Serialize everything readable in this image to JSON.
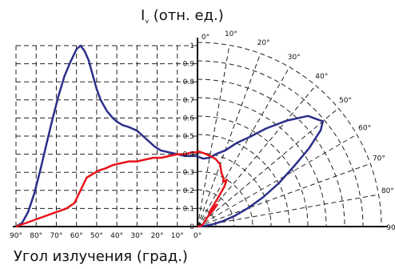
{
  "chart_data": {
    "type": "line",
    "title": {
      "main": "I",
      "sub": "v",
      "rest": " (отн. ед.)"
    },
    "xlabel": "Угол излучения (град.)",
    "left_panel": {
      "axis": "cartesian",
      "x_range": [
        90,
        0
      ],
      "y_range": [
        0,
        1.0
      ],
      "x_ticks": [
        "90°",
        "80°",
        "70°",
        "60°",
        "50°",
        "40°",
        "30°",
        "20°",
        "10°",
        "0°"
      ],
      "y_ticks": [
        "0",
        "0.1",
        "0.2",
        "0.3",
        "0.4",
        "0.5",
        "0.6",
        "0.7",
        "0.8",
        "0.9",
        "1"
      ],
      "grid": true
    },
    "right_panel": {
      "axis": "polar",
      "angle_range": [
        0,
        90
      ],
      "angle_ticks": [
        "0°",
        "10°",
        "20°",
        "30°",
        "40°",
        "50°",
        "60°",
        "70°",
        "80°",
        "90"
      ],
      "r_range": [
        0,
        1.0
      ]
    },
    "series": [
      {
        "color": "#2b2f8a",
        "cartesian": [
          [
            90,
            0.0
          ],
          [
            87,
            0.02
          ],
          [
            84,
            0.08
          ],
          [
            81,
            0.18
          ],
          [
            78,
            0.31
          ],
          [
            75,
            0.45
          ],
          [
            72,
            0.59
          ],
          [
            69,
            0.72
          ],
          [
            66,
            0.83
          ],
          [
            63,
            0.91
          ],
          [
            60,
            0.98
          ],
          [
            58,
            1.0
          ],
          [
            56,
            0.97
          ],
          [
            54,
            0.92
          ],
          [
            52,
            0.84
          ],
          [
            50,
            0.76
          ],
          [
            48,
            0.7
          ],
          [
            45,
            0.64
          ],
          [
            42,
            0.6
          ],
          [
            40,
            0.58
          ],
          [
            37,
            0.56
          ],
          [
            34,
            0.55
          ],
          [
            32,
            0.54
          ],
          [
            30,
            0.53
          ],
          [
            27,
            0.5
          ],
          [
            24,
            0.47
          ],
          [
            21,
            0.44
          ],
          [
            18,
            0.42
          ],
          [
            14,
            0.41
          ],
          [
            10,
            0.4
          ],
          [
            6,
            0.39
          ],
          [
            3,
            0.39
          ],
          [
            0,
            0.39
          ]
        ],
        "polar": [
          [
            0,
            0.38
          ],
          [
            5,
            0.37
          ],
          [
            10,
            0.38
          ],
          [
            15,
            0.41
          ],
          [
            20,
            0.44
          ],
          [
            25,
            0.5
          ],
          [
            30,
            0.56
          ],
          [
            35,
            0.65
          ],
          [
            40,
            0.75
          ],
          [
            45,
            0.85
          ],
          [
            49,
            0.88
          ],
          [
            50,
            0.89
          ],
          [
            52,
            0.85
          ],
          [
            55,
            0.74
          ],
          [
            58,
            0.62
          ],
          [
            62,
            0.5
          ],
          [
            66,
            0.39
          ],
          [
            70,
            0.29
          ],
          [
            74,
            0.21
          ],
          [
            78,
            0.14
          ],
          [
            82,
            0.08
          ],
          [
            86,
            0.03
          ],
          [
            90,
            0.0
          ]
        ]
      },
      {
        "color": "#e8141c",
        "cartesian": [
          [
            90,
            0.0
          ],
          [
            85,
            0.02
          ],
          [
            80,
            0.04
          ],
          [
            75,
            0.06
          ],
          [
            70,
            0.08
          ],
          [
            65,
            0.1
          ],
          [
            61,
            0.13
          ],
          [
            58,
            0.2
          ],
          [
            55,
            0.27
          ],
          [
            52,
            0.29
          ],
          [
            49,
            0.31
          ],
          [
            46,
            0.32
          ],
          [
            42,
            0.34
          ],
          [
            38,
            0.35
          ],
          [
            34,
            0.36
          ],
          [
            30,
            0.36
          ],
          [
            26,
            0.37
          ],
          [
            22,
            0.38
          ],
          [
            18,
            0.38
          ],
          [
            14,
            0.39
          ],
          [
            10,
            0.4
          ],
          [
            6,
            0.4
          ],
          [
            3,
            0.41
          ],
          [
            0,
            0.41
          ]
        ],
        "polar": [
          [
            0,
            0.41
          ],
          [
            5,
            0.4
          ],
          [
            10,
            0.39
          ],
          [
            15,
            0.38
          ],
          [
            20,
            0.36
          ],
          [
            24,
            0.32
          ],
          [
            28,
            0.3
          ],
          [
            30,
            0.28
          ],
          [
            32,
            0.3
          ],
          [
            34,
            0.26
          ],
          [
            36,
            0.18
          ],
          [
            38,
            0.12
          ],
          [
            40,
            0.1
          ],
          [
            42,
            0.16
          ],
          [
            44,
            0.12
          ],
          [
            46,
            0.08
          ],
          [
            50,
            0.06
          ],
          [
            60,
            0.04
          ],
          [
            70,
            0.03
          ],
          [
            80,
            0.02
          ],
          [
            90,
            0.0
          ]
        ]
      }
    ]
  }
}
